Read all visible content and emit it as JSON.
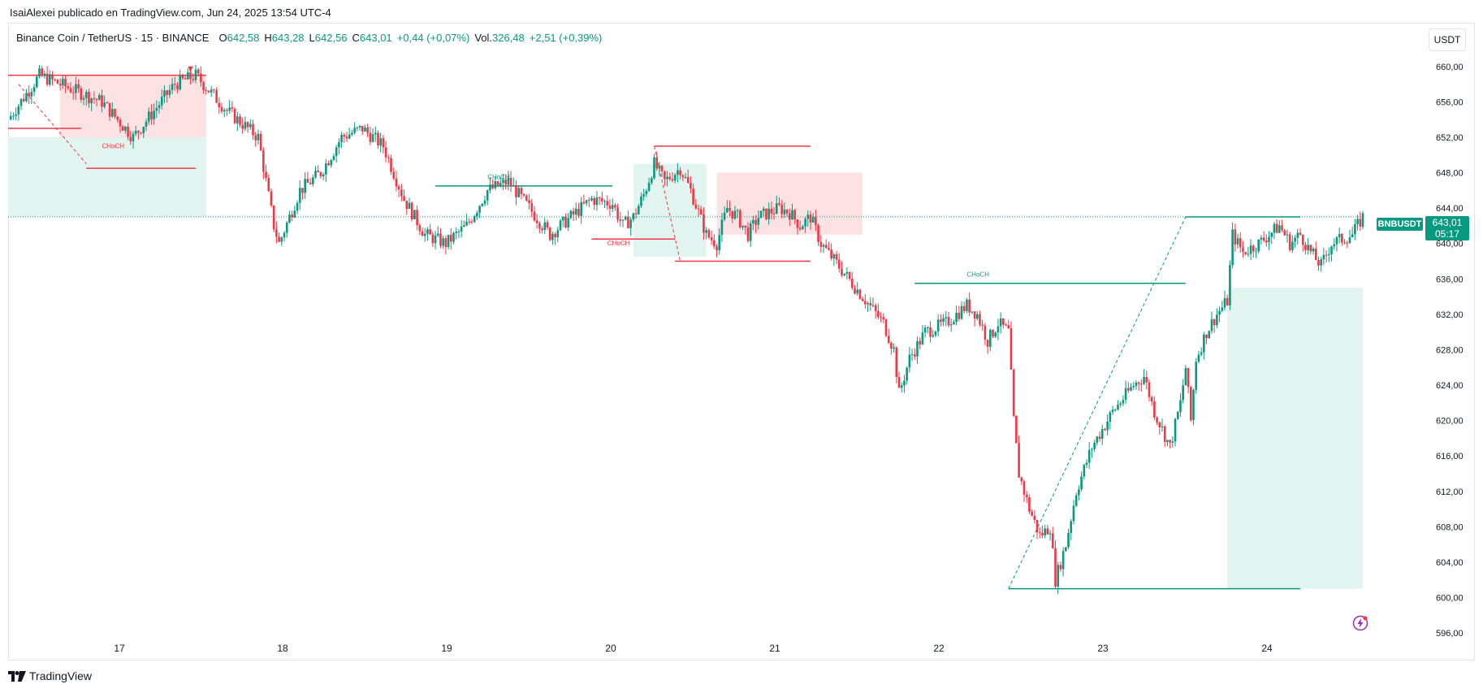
{
  "publish_line": "IsaiAlexei publicado en TradingView.com, Jun 24, 2025 13:54 UTC-4",
  "legend": {
    "symbol": "Binance Coin / TetherUS · 15 · BINANCE",
    "open_label": "O",
    "open": "642,58",
    "high_label": "H",
    "high": "643,28",
    "low_label": "L",
    "low": "642,56",
    "close_label": "C",
    "close": "643,01",
    "change": "+0,44 (+0,07%)",
    "vol_label": "Vol.",
    "vol": "326,48",
    "vol_change": "+2,51 (+0,39%)"
  },
  "currency_button": "USDT",
  "price_axis": {
    "labels": [
      "660,00",
      "656,00",
      "652,00",
      "648,00",
      "644,00",
      "640,00",
      "636,00",
      "632,00",
      "628,00",
      "624,00",
      "620,00",
      "616,00",
      "612,00",
      "608,00",
      "604,00",
      "600,00",
      "596,00"
    ]
  },
  "time_axis": {
    "labels": [
      "17",
      "18",
      "19",
      "20",
      "21",
      "22",
      "23",
      "24"
    ]
  },
  "last_price": {
    "ticker": "BNBUSDT",
    "price": "643,01",
    "countdown": "05:17"
  },
  "annotations": {
    "choch_labels": [
      "CHoCH",
      "CHoCH",
      "CHoCH",
      "CHoCH"
    ]
  },
  "colors": {
    "up": "#089981",
    "down": "#f23645",
    "zone_red": "#fde2e4",
    "zone_green": "#e2f4ef"
  },
  "footer": {
    "brand": "TradingView"
  },
  "icons": {
    "flash": "flash-icon",
    "logo": "tradingview-logo-icon"
  },
  "chart_data": {
    "type": "candlestick",
    "title": "Binance Coin / TetherUS · 15 · BINANCE",
    "y_range": [
      595,
      662
    ],
    "x_labels": [
      "17",
      "18",
      "19",
      "20",
      "21",
      "22",
      "23",
      "24"
    ],
    "price_path": [
      [
        0,
        654
      ],
      [
        3,
        659
      ],
      [
        6,
        657.5
      ],
      [
        9,
        656
      ],
      [
        12,
        652
      ],
      [
        14,
        655
      ],
      [
        16,
        658
      ],
      [
        18,
        659
      ],
      [
        21,
        655
      ],
      [
        24,
        652
      ],
      [
        25.5,
        642
      ],
      [
        26,
        640
      ],
      [
        28,
        646
      ],
      [
        30,
        648
      ],
      [
        32,
        652
      ],
      [
        34,
        653
      ],
      [
        36,
        651
      ],
      [
        38,
        645
      ],
      [
        40,
        641
      ],
      [
        42,
        640
      ],
      [
        44,
        642
      ],
      [
        46,
        646
      ],
      [
        48,
        647
      ],
      [
        50,
        644
      ],
      [
        52,
        641
      ],
      [
        54,
        643
      ],
      [
        56,
        645
      ],
      [
        58,
        644.5
      ],
      [
        59,
        642
      ],
      [
        60,
        643
      ],
      [
        61,
        645.5
      ],
      [
        62,
        649
      ],
      [
        63,
        647
      ],
      [
        64.5,
        648.5
      ],
      [
        65.5,
        646
      ],
      [
        67,
        641
      ],
      [
        68,
        640
      ],
      [
        69,
        644
      ],
      [
        70,
        643
      ],
      [
        71,
        641
      ],
      [
        72,
        643
      ],
      [
        74,
        644
      ],
      [
        75,
        643.5
      ],
      [
        76,
        642
      ],
      [
        77,
        643
      ],
      [
        78,
        640
      ],
      [
        80,
        637
      ],
      [
        82,
        634
      ],
      [
        84,
        631
      ],
      [
        85,
        628
      ],
      [
        85.5,
        623
      ],
      [
        86.5,
        627
      ],
      [
        88,
        630
      ],
      [
        90,
        631
      ],
      [
        92,
        633
      ],
      [
        93,
        632
      ],
      [
        94,
        629
      ],
      [
        95,
        631
      ],
      [
        96,
        630
      ],
      [
        96.5,
        620
      ],
      [
        97,
        614
      ],
      [
        98,
        610
      ],
      [
        99,
        607
      ],
      [
        100,
        608
      ],
      [
        100.5,
        602
      ],
      [
        101.5,
        606
      ],
      [
        102.5,
        612
      ],
      [
        104,
        617
      ],
      [
        106,
        621
      ],
      [
        108,
        624
      ],
      [
        109,
        625
      ],
      [
        110,
        621
      ],
      [
        111.5,
        617
      ],
      [
        112.5,
        622
      ],
      [
        113,
        626
      ],
      [
        113.5,
        620
      ],
      [
        114,
        627
      ],
      [
        115,
        630
      ],
      [
        116,
        632
      ],
      [
        117,
        633.5
      ],
      [
        117.5,
        641
      ],
      [
        118.5,
        639
      ],
      [
        120,
        640
      ],
      [
        122,
        642
      ],
      [
        123,
        640
      ],
      [
        124,
        641
      ],
      [
        125,
        639
      ],
      [
        126,
        637.5
      ],
      [
        127,
        640
      ],
      [
        129,
        641
      ],
      [
        130,
        643
      ]
    ],
    "zones": [
      {
        "kind": "supply",
        "from_x": 5,
        "to_x": 19,
        "top": 659,
        "bottom": 648
      },
      {
        "kind": "demand",
        "from_x": 0,
        "to_x": 19,
        "top": 652,
        "bottom": 643
      },
      {
        "kind": "supply",
        "from_x": 68,
        "to_x": 82,
        "top": 648,
        "bottom": 641
      },
      {
        "kind": "demand",
        "from_x": 60,
        "to_x": 67,
        "top": 649,
        "bottom": 638.5
      },
      {
        "kind": "demand",
        "from_x": 117,
        "to_x": 130,
        "top": 635,
        "bottom": 601
      }
    ],
    "levels": [
      643.01,
      646.5,
      641,
      638,
      635,
      601,
      643
    ]
  }
}
